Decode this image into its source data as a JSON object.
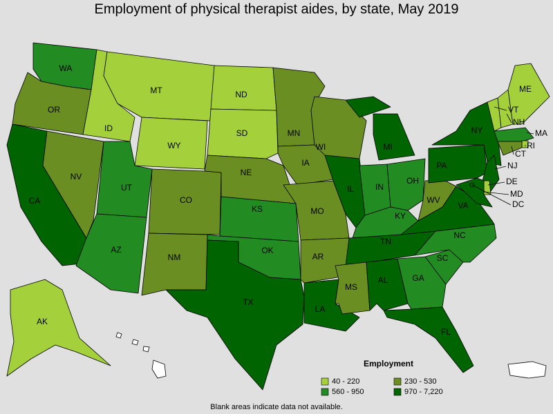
{
  "title": "Employment of physical therapist aides, by state, May 2019",
  "footnote": "Blank areas indicate data not available.",
  "legend": {
    "title": "Employment",
    "items": [
      {
        "label": "40 - 220",
        "color": "#a4d13b"
      },
      {
        "label": "230 - 530",
        "color": "#6b8e23"
      },
      {
        "label": "560 - 950",
        "color": "#228b22"
      },
      {
        "label": "970 - 7,220",
        "color": "#006400"
      }
    ]
  },
  "states": [
    {
      "label": "WA",
      "class": 2
    },
    {
      "label": "OR",
      "class": 1
    },
    {
      "label": "CA",
      "class": 3
    },
    {
      "label": "NV",
      "class": 1
    },
    {
      "label": "ID",
      "class": 0
    },
    {
      "label": "MT",
      "class": 0
    },
    {
      "label": "WY",
      "class": 0
    },
    {
      "label": "UT",
      "class": 2
    },
    {
      "label": "AZ",
      "class": 2
    },
    {
      "label": "CO",
      "class": 1
    },
    {
      "label": "NM",
      "class": 1
    },
    {
      "label": "ND",
      "class": 0
    },
    {
      "label": "SD",
      "class": 0
    },
    {
      "label": "NE",
      "class": 1
    },
    {
      "label": "KS",
      "class": 2
    },
    {
      "label": "OK",
      "class": 2
    },
    {
      "label": "TX",
      "class": 3
    },
    {
      "label": "MN",
      "class": 1
    },
    {
      "label": "IA",
      "class": 1
    },
    {
      "label": "MO",
      "class": 1
    },
    {
      "label": "AR",
      "class": 1
    },
    {
      "label": "LA",
      "class": 3
    },
    {
      "label": "WI",
      "class": 1
    },
    {
      "label": "IL",
      "class": 3
    },
    {
      "label": "MI",
      "class": 3
    },
    {
      "label": "IN",
      "class": 2
    },
    {
      "label": "OH",
      "class": 2
    },
    {
      "label": "KY",
      "class": 2
    },
    {
      "label": "TN",
      "class": 3
    },
    {
      "label": "MS",
      "class": 1
    },
    {
      "label": "AL",
      "class": 3
    },
    {
      "label": "GA",
      "class": 2
    },
    {
      "label": "FL",
      "class": 3
    },
    {
      "label": "SC",
      "class": 2
    },
    {
      "label": "NC",
      "class": 2
    },
    {
      "label": "VA",
      "class": 3
    },
    {
      "label": "WV",
      "class": 1
    },
    {
      "label": "PA",
      "class": 3
    },
    {
      "label": "NY",
      "class": 3
    },
    {
      "label": "VT",
      "class": 0
    },
    {
      "label": "NH",
      "class": 0
    },
    {
      "label": "ME",
      "class": 0
    },
    {
      "label": "MA",
      "class": 2
    },
    {
      "label": "RI",
      "class": 0
    },
    {
      "label": "CT",
      "class": 1
    },
    {
      "label": "NJ",
      "class": 3
    },
    {
      "label": "DE",
      "class": 0
    },
    {
      "label": "MD",
      "class": 3
    },
    {
      "label": "DC",
      "class": 3
    },
    {
      "label": "AK",
      "class": 0
    }
  ]
}
